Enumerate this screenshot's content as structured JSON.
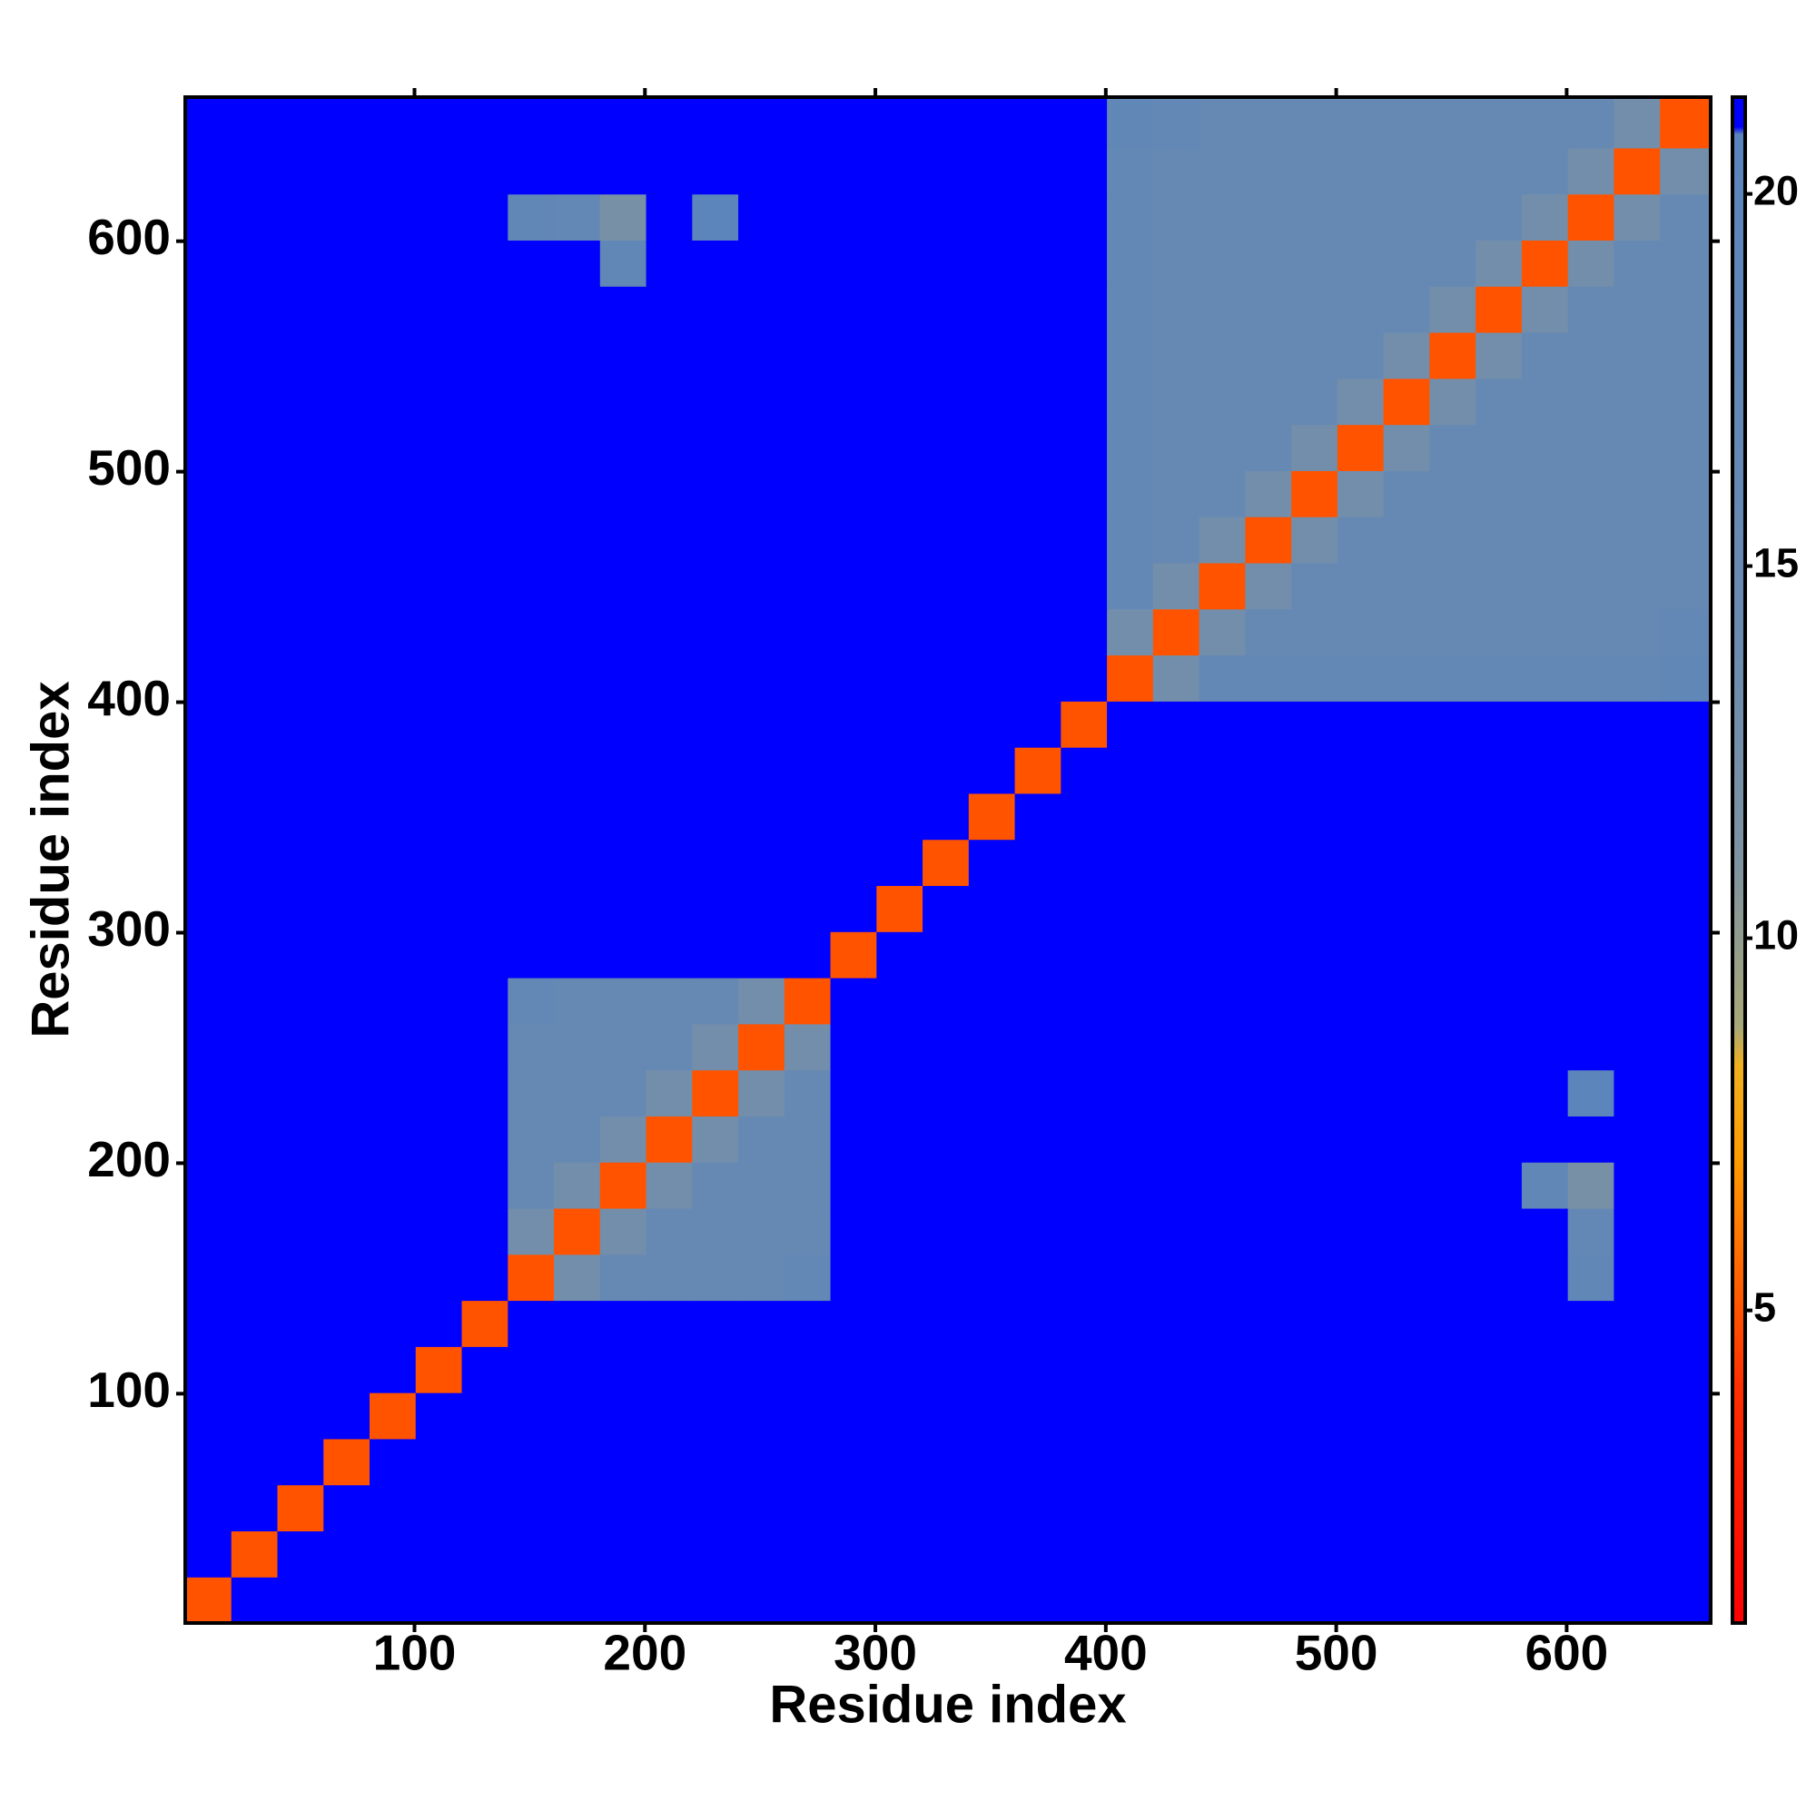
{
  "chart_data": {
    "type": "heatmap",
    "xlabel": "Residue index",
    "ylabel": "Residue index",
    "xbins": [
      0.5,
      20.5,
      40.5,
      60.5,
      80.5,
      100.5,
      120.5,
      140.5,
      160.5,
      180.5,
      200.5,
      220.5,
      240.5,
      260.5,
      280.5,
      300.5,
      320.5,
      340.5,
      360.5,
      380.5,
      400.5,
      420.5,
      440.5,
      460.5,
      480.5,
      500.5,
      520.5,
      540.5,
      560.5,
      580.5,
      600.5,
      620.5,
      640.5,
      662.5
    ],
    "ybins": [
      0.5,
      20.5,
      40.5,
      60.5,
      80.5,
      100.5,
      120.5,
      140.5,
      160.5,
      180.5,
      200.5,
      220.5,
      240.5,
      260.5,
      280.5,
      300.5,
      320.5,
      340.5,
      360.5,
      380.5,
      400.5,
      420.5,
      440.5,
      460.5,
      480.5,
      500.5,
      520.5,
      540.5,
      560.5,
      580.5,
      600.5,
      620.5,
      640.5,
      662.5
    ],
    "z": [
      [
        5,
        21.3,
        21.3,
        21.3,
        21.3,
        21.3,
        21.3,
        21.3,
        21.3,
        21.3,
        21.3,
        21.3,
        21.3,
        21.3,
        21.3,
        21.3,
        21.3,
        21.3,
        21.3,
        21.3,
        21.3,
        21.3,
        21.3,
        21.3,
        21.3,
        21.3,
        21.3,
        21.3,
        21.3,
        21.3,
        21.3,
        21.3,
        21.3
      ],
      [
        21.3,
        5,
        21.3,
        21.3,
        21.3,
        21.3,
        21.3,
        21.3,
        21.3,
        21.3,
        21.3,
        21.3,
        21.3,
        21.3,
        21.3,
        21.3,
        21.3,
        21.3,
        21.3,
        21.3,
        21.3,
        21.3,
        21.3,
        21.3,
        21.3,
        21.3,
        21.3,
        21.3,
        21.3,
        21.3,
        21.3,
        21.3,
        21.3
      ],
      [
        21.3,
        21.3,
        5,
        21.3,
        21.3,
        21.3,
        21.3,
        21.3,
        21.3,
        21.3,
        21.3,
        21.3,
        21.3,
        21.3,
        21.3,
        21.3,
        21.3,
        21.3,
        21.3,
        21.3,
        21.3,
        21.3,
        21.3,
        21.3,
        21.3,
        21.3,
        21.3,
        21.3,
        21.3,
        21.3,
        21.3,
        21.3,
        21.3
      ],
      [
        21.3,
        21.3,
        21.3,
        5,
        21.3,
        21.3,
        21.3,
        21.3,
        21.3,
        21.3,
        21.3,
        21.3,
        21.3,
        21.3,
        21.3,
        21.3,
        21.3,
        21.3,
        21.3,
        21.3,
        21.3,
        21.3,
        21.3,
        21.3,
        21.3,
        21.3,
        21.3,
        21.3,
        21.3,
        21.3,
        21.3,
        21.3,
        21.3
      ],
      [
        21.3,
        21.3,
        21.3,
        21.3,
        5,
        21.3,
        21.3,
        21.3,
        21.3,
        21.3,
        21.3,
        21.3,
        21.3,
        21.3,
        21.3,
        21.3,
        21.3,
        21.3,
        21.3,
        21.3,
        21.3,
        21.3,
        21.3,
        21.3,
        21.3,
        21.3,
        21.3,
        21.3,
        21.3,
        21.3,
        21.3,
        21.3,
        21.3
      ],
      [
        21.3,
        21.3,
        21.3,
        21.3,
        21.3,
        5,
        21.3,
        21.3,
        21.3,
        21.3,
        21.3,
        21.3,
        21.3,
        21.3,
        21.3,
        21.3,
        21.3,
        21.3,
        21.3,
        21.3,
        21.3,
        21.3,
        21.3,
        21.3,
        21.3,
        21.3,
        21.3,
        21.3,
        21.3,
        21.3,
        21.3,
        21.3,
        21.3
      ],
      [
        21.3,
        21.3,
        21.3,
        21.3,
        21.3,
        21.3,
        5,
        21.3,
        21.3,
        21.3,
        21.3,
        21.3,
        21.3,
        21.3,
        21.3,
        21.3,
        21.3,
        21.3,
        21.3,
        21.3,
        21.3,
        21.3,
        21.3,
        21.3,
        21.3,
        21.3,
        21.3,
        21.3,
        21.3,
        21.3,
        21.3,
        21.3,
        21.3
      ],
      [
        21.3,
        21.3,
        21.3,
        21.3,
        21.3,
        21.3,
        21.3,
        5,
        13,
        16,
        16,
        16,
        16,
        17,
        21.3,
        21.3,
        21.3,
        21.3,
        21.3,
        21.3,
        21.3,
        21.3,
        21.3,
        21.3,
        21.3,
        21.3,
        21.3,
        21.3,
        21.3,
        21.3,
        18,
        21.3,
        21.3
      ],
      [
        21.3,
        21.3,
        21.3,
        21.3,
        21.3,
        21.3,
        21.3,
        13,
        5,
        13,
        16,
        16,
        16,
        16,
        21.3,
        21.3,
        21.3,
        21.3,
        21.3,
        21.3,
        21.3,
        21.3,
        21.3,
        21.3,
        21.3,
        21.3,
        21.3,
        21.3,
        21.3,
        21.3,
        17,
        21.3,
        21.3
      ],
      [
        21.3,
        21.3,
        21.3,
        21.3,
        21.3,
        21.3,
        21.3,
        16,
        13,
        5,
        13,
        16,
        16,
        16,
        21.3,
        21.3,
        21.3,
        21.3,
        21.3,
        21.3,
        21.3,
        21.3,
        21.3,
        21.3,
        21.3,
        21.3,
        21.3,
        21.3,
        21.3,
        18,
        12,
        21.3,
        21.3
      ],
      [
        21.3,
        21.3,
        21.3,
        21.3,
        21.3,
        21.3,
        21.3,
        16,
        16,
        13,
        5,
        13,
        16,
        16,
        21.3,
        21.3,
        21.3,
        21.3,
        21.3,
        21.3,
        21.3,
        21.3,
        21.3,
        21.3,
        21.3,
        21.3,
        21.3,
        21.3,
        21.3,
        21.3,
        21.3,
        21.3,
        21.3
      ],
      [
        21.3,
        21.3,
        21.3,
        21.3,
        21.3,
        21.3,
        21.3,
        16,
        16,
        16,
        13,
        5,
        13,
        16,
        21.3,
        21.3,
        21.3,
        21.3,
        21.3,
        21.3,
        21.3,
        21.3,
        21.3,
        21.3,
        21.3,
        21.3,
        21.3,
        21.3,
        21.3,
        21.3,
        20,
        21.3,
        21.3
      ],
      [
        21.3,
        21.3,
        21.3,
        21.3,
        21.3,
        21.3,
        21.3,
        16,
        16,
        16,
        16,
        13,
        5,
        13,
        21.3,
        21.3,
        21.3,
        21.3,
        21.3,
        21.3,
        21.3,
        21.3,
        21.3,
        21.3,
        21.3,
        21.3,
        21.3,
        21.3,
        21.3,
        21.3,
        21.3,
        21.3,
        21.3
      ],
      [
        21.3,
        21.3,
        21.3,
        21.3,
        21.3,
        21.3,
        21.3,
        17,
        16,
        16,
        16,
        16,
        13,
        5,
        21.3,
        21.3,
        21.3,
        21.3,
        21.3,
        21.3,
        21.3,
        21.3,
        21.3,
        21.3,
        21.3,
        21.3,
        21.3,
        21.3,
        21.3,
        21.3,
        21.3,
        21.3,
        21.3
      ],
      [
        21.3,
        21.3,
        21.3,
        21.3,
        21.3,
        21.3,
        21.3,
        21.3,
        21.3,
        21.3,
        21.3,
        21.3,
        21.3,
        21.3,
        5,
        21.3,
        21.3,
        21.3,
        21.3,
        21.3,
        21.3,
        21.3,
        21.3,
        21.3,
        21.3,
        21.3,
        21.3,
        21.3,
        21.3,
        21.3,
        21.3,
        21.3,
        21.3
      ],
      [
        21.3,
        21.3,
        21.3,
        21.3,
        21.3,
        21.3,
        21.3,
        21.3,
        21.3,
        21.3,
        21.3,
        21.3,
        21.3,
        21.3,
        21.3,
        5,
        21.3,
        21.3,
        21.3,
        21.3,
        21.3,
        21.3,
        21.3,
        21.3,
        21.3,
        21.3,
        21.3,
        21.3,
        21.3,
        21.3,
        21.3,
        21.3,
        21.3
      ],
      [
        21.3,
        21.3,
        21.3,
        21.3,
        21.3,
        21.3,
        21.3,
        21.3,
        21.3,
        21.3,
        21.3,
        21.3,
        21.3,
        21.3,
        21.3,
        21.3,
        5,
        21.3,
        21.3,
        21.3,
        21.3,
        21.3,
        21.3,
        21.3,
        21.3,
        21.3,
        21.3,
        21.3,
        21.3,
        21.3,
        21.3,
        21.3,
        21.3
      ],
      [
        21.3,
        21.3,
        21.3,
        21.3,
        21.3,
        21.3,
        21.3,
        21.3,
        21.3,
        21.3,
        21.3,
        21.3,
        21.3,
        21.3,
        21.3,
        21.3,
        21.3,
        5,
        21.3,
        21.3,
        21.3,
        21.3,
        21.3,
        21.3,
        21.3,
        21.3,
        21.3,
        21.3,
        21.3,
        21.3,
        21.3,
        21.3,
        21.3
      ],
      [
        21.3,
        21.3,
        21.3,
        21.3,
        21.3,
        21.3,
        21.3,
        21.3,
        21.3,
        21.3,
        21.3,
        21.3,
        21.3,
        21.3,
        21.3,
        21.3,
        21.3,
        21.3,
        5,
        21.3,
        21.3,
        21.3,
        21.3,
        21.3,
        21.3,
        21.3,
        21.3,
        21.3,
        21.3,
        21.3,
        21.3,
        21.3,
        21.3
      ],
      [
        21.3,
        21.3,
        21.3,
        21.3,
        21.3,
        21.3,
        21.3,
        21.3,
        21.3,
        21.3,
        21.3,
        21.3,
        21.3,
        21.3,
        21.3,
        21.3,
        21.3,
        21.3,
        21.3,
        5,
        21.3,
        21.3,
        21.3,
        21.3,
        21.3,
        21.3,
        21.3,
        21.3,
        21.3,
        21.3,
        21.3,
        21.3,
        21.3
      ],
      [
        21.3,
        21.3,
        21.3,
        21.3,
        21.3,
        21.3,
        21.3,
        21.3,
        21.3,
        21.3,
        21.3,
        21.3,
        21.3,
        21.3,
        21.3,
        21.3,
        21.3,
        21.3,
        21.3,
        21.3,
        5,
        13,
        17,
        17,
        17,
        17,
        17,
        17,
        17,
        17,
        17,
        17,
        18
      ],
      [
        21.3,
        21.3,
        21.3,
        21.3,
        21.3,
        21.3,
        21.3,
        21.3,
        21.3,
        21.3,
        21.3,
        21.3,
        21.3,
        21.3,
        21.3,
        21.3,
        21.3,
        21.3,
        21.3,
        21.3,
        13,
        5,
        13,
        16,
        16,
        16,
        16,
        16,
        16,
        16,
        16,
        16,
        17
      ],
      [
        21.3,
        21.3,
        21.3,
        21.3,
        21.3,
        21.3,
        21.3,
        21.3,
        21.3,
        21.3,
        21.3,
        21.3,
        21.3,
        21.3,
        21.3,
        21.3,
        21.3,
        21.3,
        21.3,
        21.3,
        17,
        13,
        5,
        13,
        16,
        16,
        16,
        16,
        16,
        16,
        16,
        16,
        16
      ],
      [
        21.3,
        21.3,
        21.3,
        21.3,
        21.3,
        21.3,
        21.3,
        21.3,
        21.3,
        21.3,
        21.3,
        21.3,
        21.3,
        21.3,
        21.3,
        21.3,
        21.3,
        21.3,
        21.3,
        21.3,
        17,
        16,
        13,
        5,
        13,
        16,
        16,
        16,
        16,
        16,
        16,
        16,
        16
      ],
      [
        21.3,
        21.3,
        21.3,
        21.3,
        21.3,
        21.3,
        21.3,
        21.3,
        21.3,
        21.3,
        21.3,
        21.3,
        21.3,
        21.3,
        21.3,
        21.3,
        21.3,
        21.3,
        21.3,
        21.3,
        17,
        16,
        16,
        13,
        5,
        13,
        16,
        16,
        16,
        16,
        16,
        16,
        16
      ],
      [
        21.3,
        21.3,
        21.3,
        21.3,
        21.3,
        21.3,
        21.3,
        21.3,
        21.3,
        21.3,
        21.3,
        21.3,
        21.3,
        21.3,
        21.3,
        21.3,
        21.3,
        21.3,
        21.3,
        21.3,
        17,
        16,
        16,
        16,
        13,
        5,
        13,
        16,
        16,
        16,
        16,
        16,
        16
      ],
      [
        21.3,
        21.3,
        21.3,
        21.3,
        21.3,
        21.3,
        21.3,
        21.3,
        21.3,
        21.3,
        21.3,
        21.3,
        21.3,
        21.3,
        21.3,
        21.3,
        21.3,
        21.3,
        21.3,
        21.3,
        17,
        16,
        16,
        16,
        16,
        13,
        5,
        13,
        16,
        16,
        16,
        16,
        16
      ],
      [
        21.3,
        21.3,
        21.3,
        21.3,
        21.3,
        21.3,
        21.3,
        21.3,
        21.3,
        21.3,
        21.3,
        21.3,
        21.3,
        21.3,
        21.3,
        21.3,
        21.3,
        21.3,
        21.3,
        21.3,
        17,
        16,
        16,
        16,
        16,
        16,
        13,
        5,
        13,
        16,
        16,
        16,
        16
      ],
      [
        21.3,
        21.3,
        21.3,
        21.3,
        21.3,
        21.3,
        21.3,
        21.3,
        21.3,
        21.3,
        21.3,
        21.3,
        21.3,
        21.3,
        21.3,
        21.3,
        21.3,
        21.3,
        21.3,
        21.3,
        17,
        16,
        16,
        16,
        16,
        16,
        16,
        13,
        5,
        13,
        16,
        16,
        16
      ],
      [
        21.3,
        21.3,
        21.3,
        21.3,
        21.3,
        21.3,
        21.3,
        21.3,
        21.3,
        18,
        21.3,
        21.3,
        21.3,
        21.3,
        21.3,
        21.3,
        21.3,
        21.3,
        21.3,
        21.3,
        17,
        16,
        16,
        16,
        16,
        16,
        16,
        16,
        13,
        5,
        13,
        16,
        16
      ],
      [
        21.3,
        21.3,
        21.3,
        21.3,
        21.3,
        21.3,
        21.3,
        18,
        17,
        12,
        21.3,
        20,
        21.3,
        21.3,
        21.3,
        21.3,
        21.3,
        21.3,
        21.3,
        21.3,
        17,
        16,
        16,
        16,
        16,
        16,
        16,
        16,
        16,
        13,
        5,
        13,
        16
      ],
      [
        21.3,
        21.3,
        21.3,
        21.3,
        21.3,
        21.3,
        21.3,
        21.3,
        21.3,
        21.3,
        21.3,
        21.3,
        21.3,
        21.3,
        21.3,
        21.3,
        21.3,
        21.3,
        21.3,
        21.3,
        17,
        16,
        16,
        16,
        16,
        16,
        16,
        16,
        16,
        16,
        13,
        5,
        13
      ],
      [
        21.3,
        21.3,
        21.3,
        21.3,
        21.3,
        21.3,
        21.3,
        21.3,
        21.3,
        21.3,
        21.3,
        21.3,
        21.3,
        21.3,
        21.3,
        21.3,
        21.3,
        21.3,
        21.3,
        21.3,
        18,
        17,
        16,
        16,
        16,
        16,
        16,
        16,
        16,
        16,
        16,
        13,
        5
      ]
    ],
    "xlim": [
      0.5,
      662.5
    ],
    "ylim": [
      0.5,
      662.5
    ],
    "xticks": [
      100,
      200,
      300,
      400,
      500,
      600
    ],
    "yticks": [
      100,
      200,
      300,
      400,
      500,
      600
    ],
    "zlim": [
      0.8,
      21.3
    ],
    "colorbar_ticks": [
      5,
      10,
      15,
      20
    ],
    "colorscale": [
      [
        0.8,
        "#ff0000"
      ],
      [
        4,
        "#ff3000"
      ],
      [
        7,
        "#ff9a00"
      ],
      [
        8.3,
        "#f0b020"
      ],
      [
        8.8,
        "#a8a878"
      ],
      [
        11,
        "#7f93a0"
      ],
      [
        14,
        "#6b8bb0"
      ],
      [
        20.8,
        "#5a84bc"
      ],
      [
        20.9,
        "#0000ff"
      ],
      [
        21.3,
        "#0000ff"
      ]
    ]
  }
}
